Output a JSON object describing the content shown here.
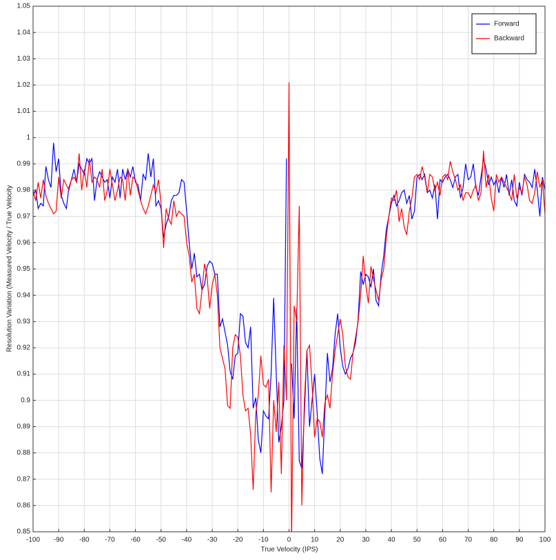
{
  "chart_data": {
    "type": "line",
    "x_label": "True Velocity (IPS)",
    "y_label": "Resolution Variation (Measured Velocity / True Velocity",
    "xlim": [
      -100,
      100
    ],
    "ylim": [
      0.85,
      1.05
    ],
    "xticks": [
      -100,
      -90,
      -80,
      -70,
      -60,
      -50,
      -40,
      -30,
      -20,
      -10,
      0,
      10,
      20,
      30,
      40,
      50,
      60,
      70,
      80,
      90,
      100
    ],
    "yticks": [
      0.85,
      0.86,
      0.87,
      0.88,
      0.89,
      0.9,
      0.91,
      0.92,
      0.93,
      0.94,
      0.95,
      0.96,
      0.97,
      0.98,
      0.99,
      1,
      1.01,
      1.02,
      1.03,
      1.04,
      1.05
    ],
    "grid": true,
    "legend": "upper right",
    "x": [
      -100,
      -99,
      -98,
      -97,
      -96,
      -95,
      -94,
      -93,
      -92,
      -91,
      -90,
      -89,
      -88,
      -87,
      -86,
      -85,
      -84,
      -83,
      -82,
      -81,
      -80,
      -79,
      -78,
      -77,
      -76,
      -75,
      -74,
      -73,
      -72,
      -71,
      -70,
      -69,
      -68,
      -67,
      -66,
      -65,
      -64,
      -63,
      -62,
      -61,
      -60,
      -59,
      -58,
      -57,
      -56,
      -55,
      -54,
      -53,
      -52,
      -51,
      -50,
      -49,
      -48,
      -47,
      -46,
      -45,
      -44,
      -43,
      -42,
      -41,
      -40,
      -39,
      -38,
      -37,
      -36,
      -35,
      -34,
      -33,
      -32,
      -31,
      -30,
      -29,
      -28,
      -27,
      -26,
      -25,
      -24,
      -23,
      -22,
      -21,
      -20,
      -19,
      -18,
      -17,
      -16,
      -15,
      -14,
      -13,
      -12,
      -11,
      -10,
      -9,
      -8,
      -7,
      -6,
      -5,
      -4,
      -3,
      -2,
      -1,
      0,
      1,
      2,
      3,
      4,
      5,
      6,
      7,
      8,
      9,
      10,
      11,
      12,
      13,
      14,
      15,
      16,
      17,
      18,
      19,
      20,
      21,
      22,
      23,
      24,
      25,
      26,
      27,
      28,
      29,
      30,
      31,
      32,
      33,
      34,
      35,
      36,
      37,
      38,
      39,
      40,
      41,
      42,
      43,
      44,
      45,
      46,
      47,
      48,
      49,
      50,
      51,
      52,
      53,
      54,
      55,
      56,
      57,
      58,
      59,
      60,
      61,
      62,
      63,
      64,
      65,
      66,
      67,
      68,
      69,
      70,
      71,
      72,
      73,
      74,
      75,
      76,
      77,
      78,
      79,
      80,
      81,
      82,
      83,
      84,
      85,
      86,
      87,
      88,
      89,
      90,
      91,
      92,
      93,
      94,
      95,
      96,
      97,
      98,
      99,
      100
    ],
    "series": [
      {
        "name": "Forward",
        "color": "#0000ff",
        "values": [
          0.978,
          0.98,
          0.973,
          0.975,
          0.974,
          0.989,
          0.984,
          0.981,
          0.998,
          0.987,
          0.992,
          0.978,
          0.975,
          0.973,
          0.981,
          0.984,
          0.988,
          0.983,
          0.99,
          0.988,
          0.986,
          0.992,
          0.99,
          0.992,
          0.976,
          0.984,
          0.987,
          0.985,
          0.983,
          0.984,
          0.977,
          0.985,
          0.983,
          0.988,
          0.977,
          0.988,
          0.984,
          0.988,
          0.985,
          0.989,
          0.983,
          0.982,
          0.976,
          0.986,
          0.984,
          0.994,
          0.985,
          0.992,
          0.974,
          0.976,
          0.973,
          0.962,
          0.967,
          0.97,
          0.976,
          0.978,
          0.978,
          0.979,
          0.984,
          0.983,
          0.972,
          0.96,
          0.95,
          0.956,
          0.947,
          0.948,
          0.942,
          0.944,
          0.951,
          0.953,
          0.952,
          0.948,
          0.948,
          0.928,
          0.931,
          0.926,
          0.921,
          0.911,
          0.908,
          0.917,
          0.918,
          0.933,
          0.932,
          0.922,
          0.92,
          0.928,
          0.897,
          0.901,
          0.885,
          0.88,
          0.896,
          0.894,
          0.893,
          0.91,
          0.939,
          0.91,
          0.884,
          0.89,
          0.9,
          0.992,
          null,
          0.914,
          0.893,
          0.935,
          0.877,
          0.874,
          0.895,
          0.919,
          0.89,
          0.9,
          0.91,
          0.895,
          0.878,
          0.872,
          0.895,
          0.918,
          0.907,
          0.912,
          0.925,
          0.933,
          0.92,
          0.913,
          0.91,
          0.912,
          0.916,
          0.918,
          0.922,
          0.931,
          0.949,
          0.944,
          0.948,
          0.947,
          0.943,
          0.95,
          0.938,
          0.936,
          0.948,
          0.955,
          0.965,
          0.97,
          0.975,
          0.978,
          0.974,
          0.976,
          0.979,
          0.98,
          0.975,
          0.978,
          0.969,
          0.972,
          0.985,
          0.986,
          0.984,
          0.986,
          0.979,
          0.98,
          0.977,
          0.982,
          0.969,
          0.984,
          0.983,
          0.985,
          0.986,
          0.984,
          0.981,
          0.985,
          0.986,
          0.977,
          0.981,
          0.99,
          0.984,
          0.985,
          0.99,
          0.981,
          0.978,
          0.985,
          0.992,
          0.988,
          0.982,
          0.985,
          0.982,
          0.984,
          0.979,
          0.985,
          0.981,
          0.986,
          0.978,
          0.984,
          0.976,
          0.974,
          0.983,
          0.978,
          0.986,
          0.984,
          0.983,
          0.981,
          0.988,
          0.98,
          0.97,
          0.985,
          0.98
        ]
      },
      {
        "name": "Backward",
        "color": "#ff0000",
        "values": [
          0.98,
          0.976,
          0.983,
          0.977,
          0.984,
          0.978,
          0.975,
          0.973,
          0.971,
          0.972,
          0.985,
          0.977,
          0.984,
          0.982,
          0.98,
          0.984,
          0.985,
          0.983,
          0.994,
          0.98,
          0.988,
          0.981,
          0.992,
          0.983,
          0.985,
          0.984,
          0.981,
          0.988,
          0.976,
          0.98,
          0.988,
          0.982,
          0.976,
          0.98,
          0.985,
          0.984,
          0.976,
          0.988,
          0.978,
          0.985,
          0.984,
          0.98,
          0.976,
          0.973,
          0.971,
          0.974,
          0.978,
          0.982,
          0.979,
          0.984,
          0.975,
          0.958,
          0.973,
          0.969,
          0.967,
          0.976,
          0.97,
          0.972,
          0.971,
          0.97,
          0.96,
          0.955,
          0.945,
          0.948,
          0.935,
          0.933,
          0.942,
          0.952,
          0.947,
          0.935,
          0.944,
          0.948,
          0.94,
          0.92,
          0.916,
          0.912,
          0.898,
          0.897,
          0.92,
          0.925,
          0.924,
          0.917,
          0.902,
          0.896,
          0.897,
          0.887,
          0.866,
          0.895,
          0.902,
          0.917,
          0.906,
          0.905,
          0.908,
          0.865,
          0.9,
          0.888,
          0.907,
          0.872,
          0.921,
          0.9,
          1.021,
          0.846,
          0.936,
          0.93,
          0.974,
          0.86,
          0.9,
          0.919,
          0.921,
          0.906,
          0.886,
          0.893,
          0.892,
          0.886,
          0.899,
          0.902,
          0.897,
          0.91,
          0.919,
          0.925,
          0.931,
          0.925,
          0.913,
          0.909,
          0.908,
          0.918,
          0.924,
          0.93,
          0.94,
          0.955,
          0.944,
          0.937,
          0.951,
          0.946,
          0.942,
          0.938,
          0.946,
          0.95,
          0.962,
          0.97,
          0.977,
          0.976,
          0.98,
          0.968,
          0.973,
          0.966,
          0.963,
          0.972,
          0.977,
          0.985,
          0.986,
          0.984,
          0.989,
          0.985,
          0.979,
          0.986,
          0.985,
          0.98,
          0.983,
          0.978,
          0.985,
          0.986,
          0.984,
          0.991,
          0.987,
          0.984,
          0.98,
          0.982,
          0.976,
          0.979,
          0.979,
          0.977,
          0.98,
          0.982,
          0.976,
          0.979,
          0.995,
          0.981,
          0.986,
          0.977,
          0.972,
          0.986,
          0.983,
          0.985,
          0.983,
          0.981,
          0.979,
          0.976,
          0.986,
          0.977,
          0.981,
          0.979,
          0.985,
          0.982,
          0.976,
          0.975,
          0.979,
          0.987,
          0.981,
          0.984,
          0.971
        ]
      }
    ]
  }
}
